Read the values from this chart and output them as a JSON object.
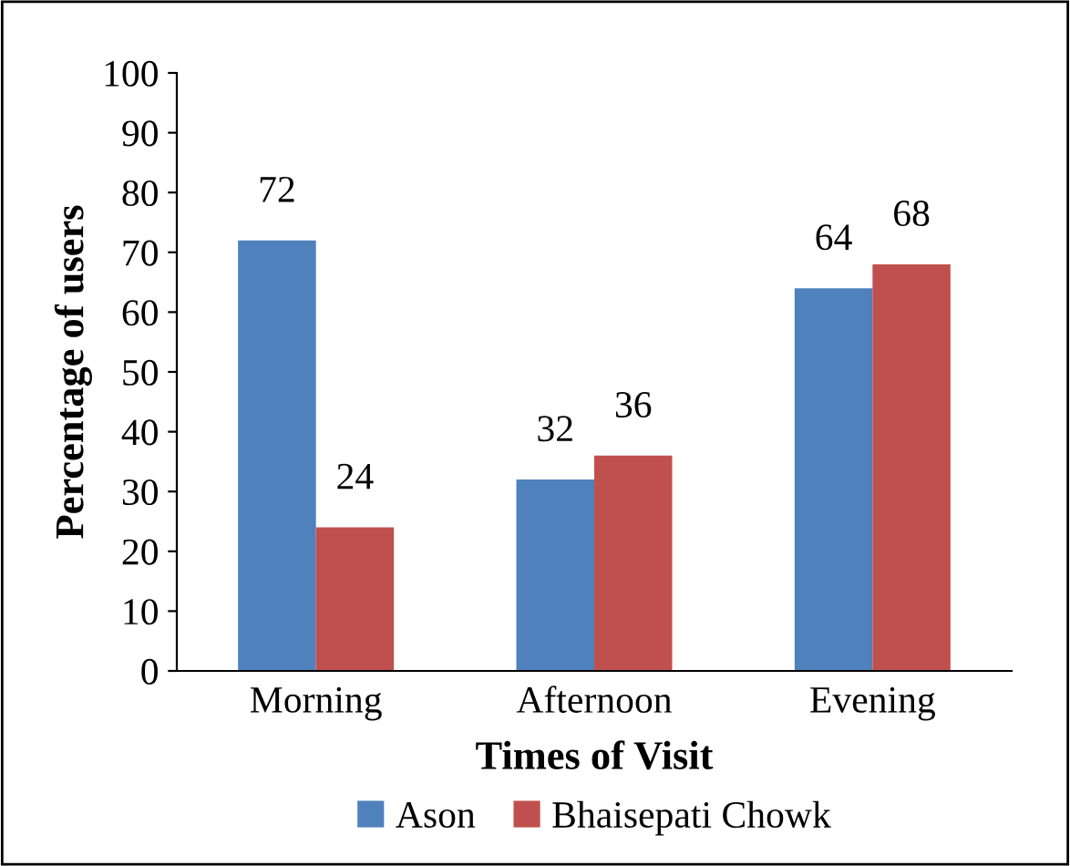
{
  "chart_data": {
    "type": "bar",
    "xlabel": "Times of Visit",
    "ylabel": "Percentage of users",
    "categories": [
      "Morning",
      "Afternoon",
      "Evening"
    ],
    "series": [
      {
        "name": "Ason",
        "color": "#4f81bd",
        "values": [
          72,
          32,
          64
        ]
      },
      {
        "name": "Bhaisepati Chowk",
        "color": "#c0504d",
        "values": [
          24,
          36,
          68
        ]
      }
    ],
    "ylim": [
      0,
      100
    ],
    "yticks": [
      0,
      10,
      20,
      30,
      40,
      50,
      60,
      70,
      80,
      90,
      100
    ],
    "data_labels": true,
    "grid": false,
    "legend": "bottom"
  }
}
